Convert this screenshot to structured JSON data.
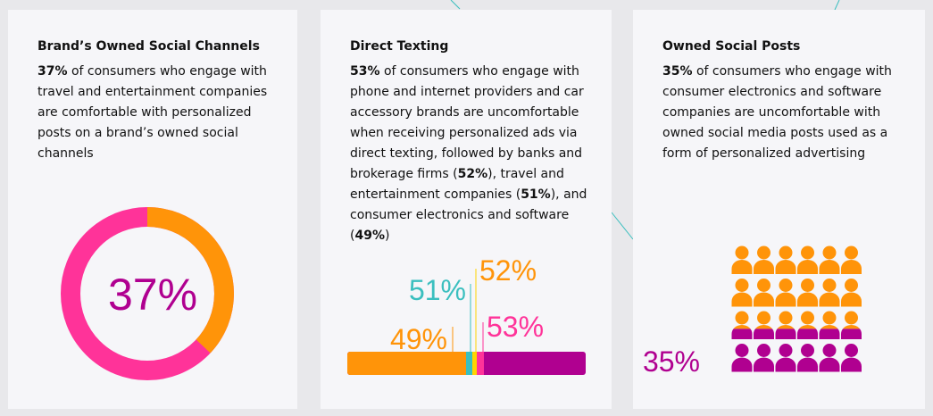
{
  "colors": {
    "orange": "#ff9409",
    "pink": "#ff3399",
    "purple": "#b00090",
    "teal": "#3bbfbf",
    "yellow": "#ffd400",
    "card": "#f6f6f9"
  },
  "cards": [
    {
      "title": "Brand’s Owned Social Channels",
      "stat": "37%",
      "text": " of consumers who engage with travel and entertainment companies are comfortable with personalized posts on a brand’s owned social channels",
      "graphic_label": "37%",
      "donut_percent": 37
    },
    {
      "title": "Direct Texting",
      "stat": "53%",
      "text1": " of consumers who engage with phone and internet providers and car accessory brands are uncomfortable when receiving personalized ads via direct texting, followed by banks and brokerage firms (",
      "b1": "52%",
      "text2": "), travel and entertainment companies (",
      "b2": "51%",
      "text3": "), and consumer electronics and software (",
      "b3": "49%",
      "text4": ")",
      "bar_labels": [
        "49%",
        "51%",
        "52%",
        "53%"
      ]
    },
    {
      "title": "Owned Social Posts",
      "stat": "35%",
      "text": " of consumers who engage with consumer electronics and software companies are uncomfortable with owned social media posts used as a form of personalized advertising",
      "graphic_label": "35%",
      "people_percent": 35
    }
  ]
}
